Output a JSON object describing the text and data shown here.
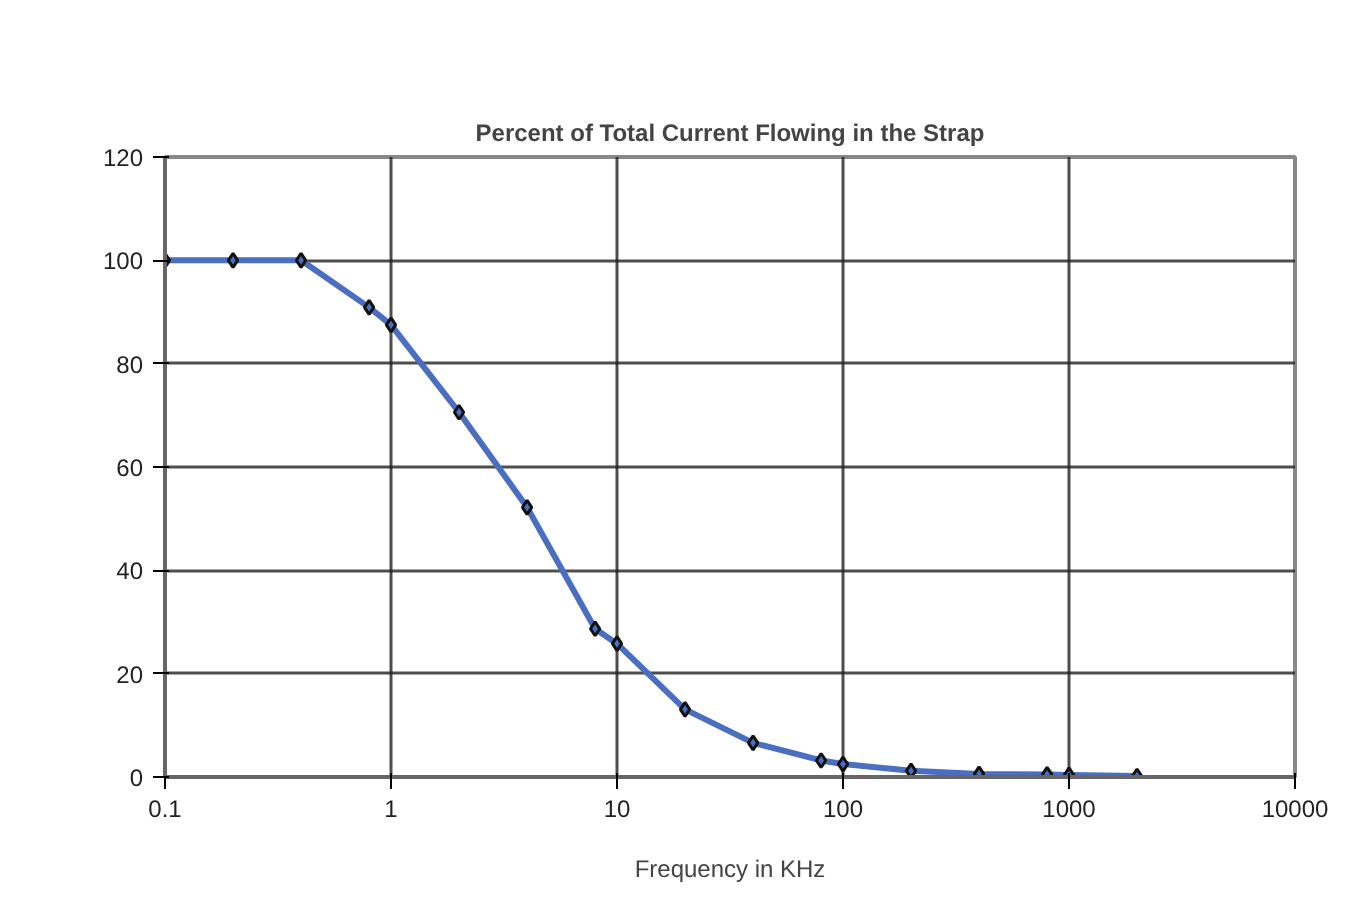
{
  "chart_data": {
    "type": "line",
    "title": "Percent of Total Current Flowing in the Strap",
    "xlabel": "Frequency in KHz",
    "x": [
      0.1,
      0.2,
      0.4,
      0.8,
      1,
      2,
      4,
      8,
      10,
      20,
      40,
      80,
      100,
      200,
      400,
      800,
      1000,
      2000
    ],
    "series": [
      {
        "color": "#4a6fc0",
        "values": [
          100,
          100,
          100,
          90.9,
          87.5,
          70.6,
          52.2,
          28.7,
          25.8,
          13.1,
          6.6,
          3.2,
          2.5,
          1.2,
          0.6,
          0.5,
          0.4,
          0.2
        ]
      }
    ],
    "log": "x",
    "xlim": [
      0.1,
      10000
    ],
    "xticks": [
      {
        "value": 0.1,
        "label": "0.1"
      },
      1,
      10,
      100,
      1000,
      10000
    ],
    "ylim": [
      0,
      120
    ],
    "yticks": [
      0,
      20,
      40,
      60,
      80,
      100,
      120
    ],
    "grid": true,
    "marker": "diamond",
    "line_style": "solid"
  }
}
